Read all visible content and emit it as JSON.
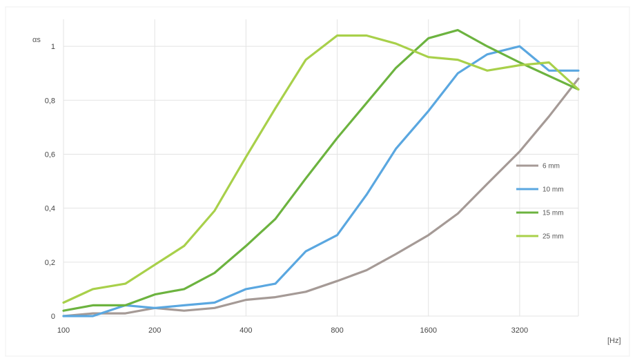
{
  "chart_data": {
    "type": "line",
    "xscale": "log2",
    "x": [
      100,
      125,
      160,
      200,
      250,
      315,
      400,
      500,
      630,
      800,
      1000,
      1250,
      1600,
      2000,
      2500,
      3200,
      4000,
      5000
    ],
    "xticks": [
      "100",
      "200",
      "400",
      "800",
      "1600",
      "3200"
    ],
    "xtick_values": [
      100,
      200,
      400,
      800,
      1600,
      3200
    ],
    "xlabel": "[Hz]",
    "ylabel": "αs",
    "yticks": [
      "0",
      "0,2",
      "0,4",
      "0,6",
      "0,8",
      "1"
    ],
    "ytick_values": [
      0,
      0.2,
      0.4,
      0.6,
      0.8,
      1.0
    ],
    "ylim": [
      0,
      1.1
    ],
    "xlim": [
      100,
      5000
    ],
    "grid": true,
    "legend_position": "right",
    "series": [
      {
        "name": "6 mm",
        "color": "#a59a96",
        "values": [
          0.0,
          0.01,
          0.01,
          0.03,
          0.02,
          0.03,
          0.06,
          0.07,
          0.09,
          0.13,
          0.17,
          0.23,
          0.3,
          0.38,
          0.49,
          0.61,
          0.74,
          0.88
        ]
      },
      {
        "name": "10 mm",
        "color": "#5aa7e0",
        "values": [
          0.0,
          0.0,
          0.04,
          0.03,
          0.04,
          0.05,
          0.1,
          0.12,
          0.24,
          0.3,
          0.45,
          0.62,
          0.76,
          0.9,
          0.97,
          1.0,
          0.91,
          0.91
        ]
      },
      {
        "name": "15 mm",
        "color": "#6cb33f",
        "values": [
          0.02,
          0.04,
          0.04,
          0.08,
          0.1,
          0.16,
          0.26,
          0.36,
          0.51,
          0.66,
          0.79,
          0.92,
          1.03,
          1.06,
          1.0,
          0.94,
          0.89,
          0.84
        ]
      },
      {
        "name": "25 mm",
        "color": "#a8d04a",
        "values": [
          0.05,
          0.1,
          0.12,
          0.19,
          0.26,
          0.39,
          0.59,
          0.77,
          0.95,
          1.04,
          1.04,
          1.01,
          0.96,
          0.95,
          0.91,
          0.93,
          0.94,
          0.84
        ]
      }
    ]
  }
}
